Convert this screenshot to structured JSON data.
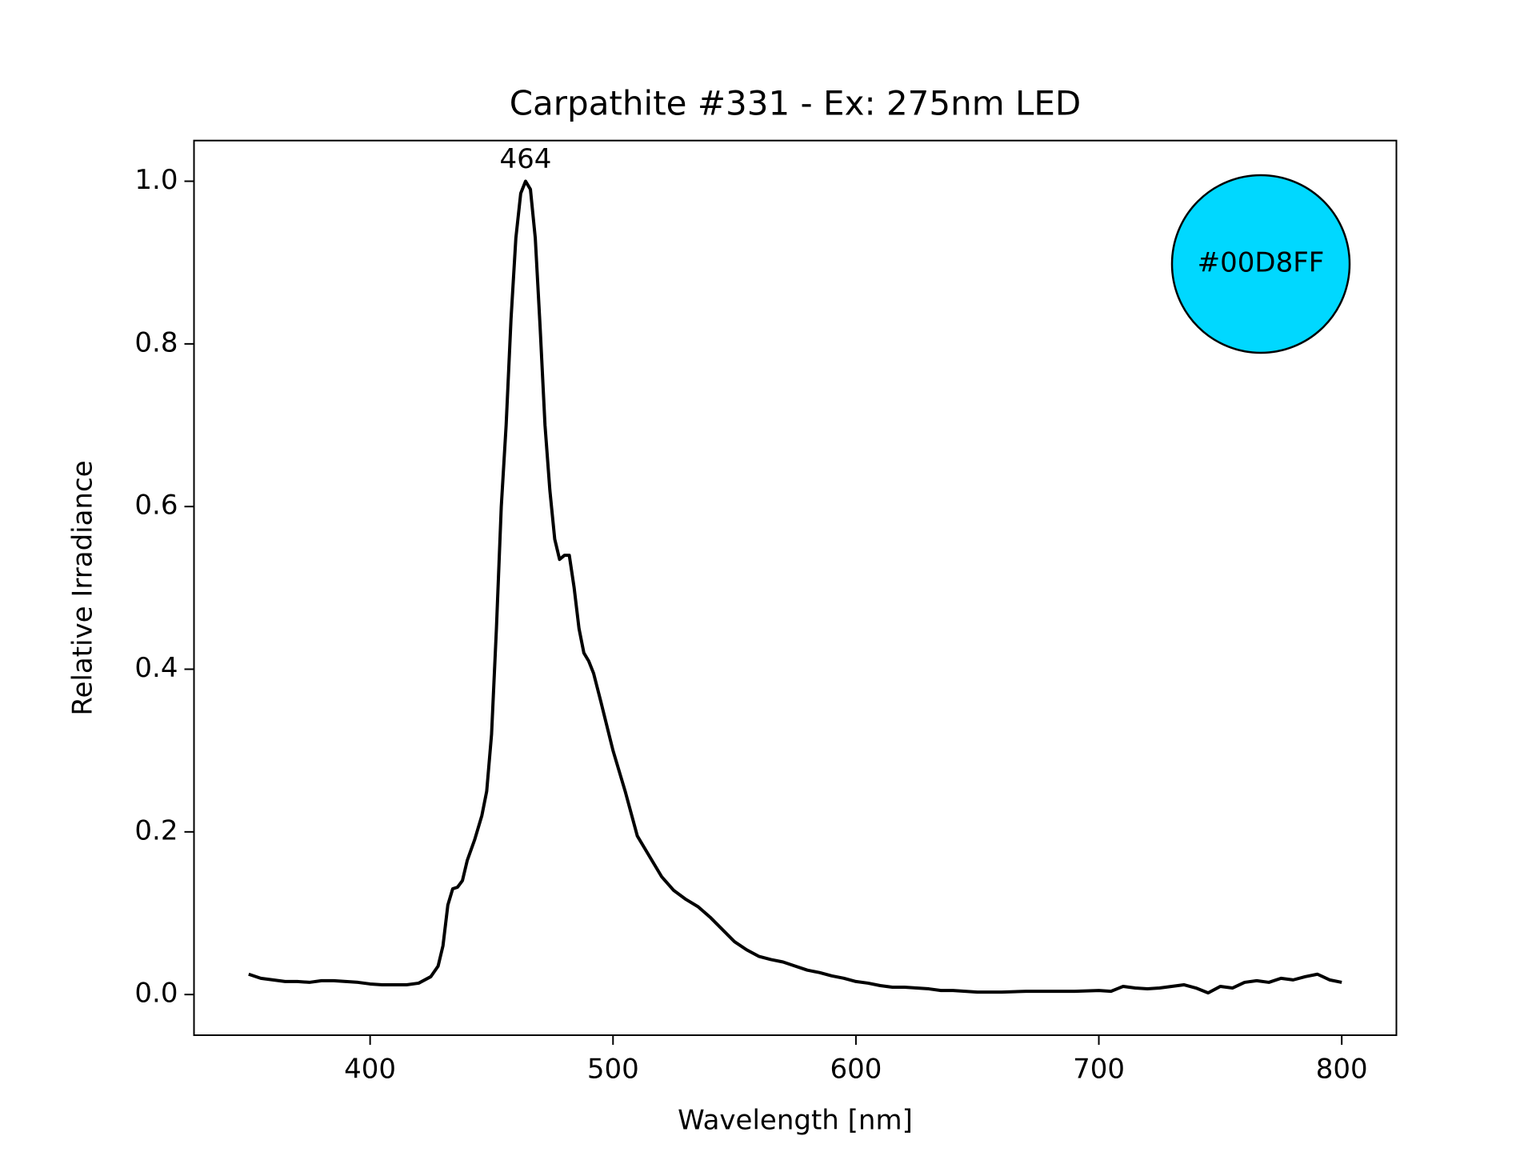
{
  "chart_data": {
    "type": "line",
    "title": "Carpathite #331 - Ex: 275nm LED",
    "xlabel": "Wavelength [nm]",
    "ylabel": "Relative Irradiance",
    "color": "#000000",
    "x": [
      350,
      355,
      360,
      365,
      370,
      375,
      380,
      385,
      390,
      395,
      400,
      405,
      410,
      415,
      420,
      425,
      428,
      430,
      432,
      434,
      436,
      438,
      440,
      443,
      446,
      448,
      450,
      452,
      454,
      456,
      458,
      460,
      462,
      464,
      466,
      468,
      470,
      472,
      474,
      476,
      478,
      480,
      482,
      484,
      486,
      488,
      490,
      492,
      495,
      500,
      505,
      510,
      515,
      520,
      525,
      530,
      535,
      540,
      545,
      550,
      555,
      560,
      565,
      570,
      575,
      580,
      585,
      590,
      595,
      600,
      605,
      610,
      615,
      620,
      625,
      630,
      635,
      640,
      645,
      650,
      660,
      670,
      680,
      690,
      700,
      705,
      710,
      715,
      720,
      725,
      730,
      735,
      740,
      745,
      750,
      755,
      760,
      765,
      770,
      775,
      780,
      785,
      790,
      795,
      800
    ],
    "values": [
      0.025,
      0.02,
      0.018,
      0.016,
      0.016,
      0.015,
      0.017,
      0.017,
      0.016,
      0.015,
      0.013,
      0.012,
      0.012,
      0.012,
      0.014,
      0.022,
      0.035,
      0.06,
      0.11,
      0.13,
      0.132,
      0.14,
      0.165,
      0.19,
      0.22,
      0.25,
      0.32,
      0.45,
      0.6,
      0.7,
      0.83,
      0.93,
      0.985,
      1.0,
      0.99,
      0.93,
      0.82,
      0.7,
      0.62,
      0.56,
      0.535,
      0.54,
      0.54,
      0.5,
      0.45,
      0.42,
      0.41,
      0.395,
      0.36,
      0.3,
      0.25,
      0.195,
      0.17,
      0.145,
      0.128,
      0.117,
      0.108,
      0.095,
      0.08,
      0.065,
      0.055,
      0.047,
      0.043,
      0.04,
      0.035,
      0.03,
      0.027,
      0.023,
      0.02,
      0.016,
      0.014,
      0.011,
      0.009,
      0.009,
      0.008,
      0.007,
      0.005,
      0.005,
      0.004,
      0.003,
      0.003,
      0.004,
      0.004,
      0.004,
      0.005,
      0.004,
      0.01,
      0.008,
      0.007,
      0.008,
      0.01,
      0.012,
      0.008,
      0.002,
      0.01,
      0.008,
      0.015,
      0.017,
      0.015,
      0.02,
      0.018,
      0.022,
      0.025,
      0.018,
      0.015
    ],
    "xlim": [
      327.5,
      822.5
    ],
    "ylim": [
      -0.05,
      1.05
    ],
    "xticks": [
      400,
      500,
      600,
      700,
      800
    ],
    "yticks": [
      {
        "value": 0,
        "label": "0.0"
      },
      0.2,
      0.4,
      0.6,
      0.8,
      {
        "value": 1,
        "label": "1.0"
      }
    ],
    "annotations": [
      {
        "text": "464",
        "x": 464,
        "y": 1.0
      }
    ],
    "swatch": {
      "label": "#00D8FF"
    }
  }
}
